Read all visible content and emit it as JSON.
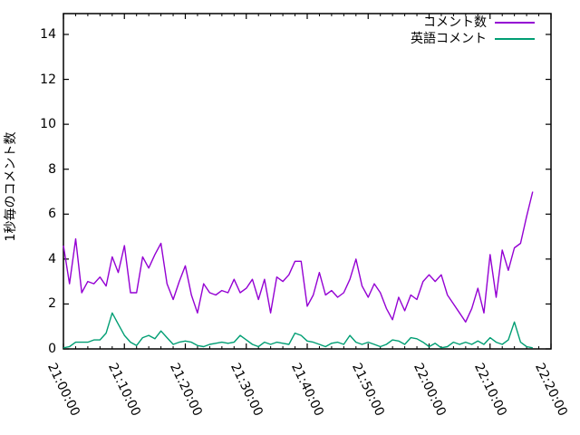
{
  "chart_data": {
    "type": "line",
    "title": "",
    "xlabel": "",
    "ylabel": "1秒毎のコメント数",
    "x_tick_labels": [
      "21:00:00",
      "21:10:00",
      "21:20:00",
      "21:30:00",
      "21:40:00",
      "21:50:00",
      "22:00:00",
      "22:10:00",
      "22:20:00"
    ],
    "x_tick_interval_minutes": 10,
    "x_minor_tick_interval_minutes": 2,
    "xlim_minutes": [
      0,
      80
    ],
    "x_unit": "minutes since 21:00:00, one sample per minute",
    "y_ticks": [
      0,
      2,
      4,
      6,
      8,
      10,
      12,
      14
    ],
    "ylim": [
      0,
      14.9
    ],
    "grid": false,
    "legend_position": "top-right-inside",
    "series": [
      {
        "name": "コメント数",
        "color": "#9400d3",
        "values": [
          4.6,
          2.9,
          4.9,
          2.5,
          3.0,
          2.9,
          3.2,
          2.8,
          4.1,
          3.4,
          4.6,
          2.5,
          2.5,
          4.1,
          3.6,
          4.2,
          4.7,
          2.9,
          2.2,
          3.0,
          3.7,
          2.4,
          1.6,
          2.9,
          2.5,
          2.4,
          2.6,
          2.5,
          3.1,
          2.5,
          2.7,
          3.1,
          2.2,
          3.1,
          1.6,
          3.2,
          3.0,
          3.3,
          3.9,
          3.9,
          1.9,
          2.4,
          3.4,
          2.4,
          2.6,
          2.3,
          2.5,
          3.1,
          4.0,
          2.8,
          2.3,
          2.9,
          2.5,
          1.8,
          1.3,
          2.3,
          1.7,
          2.4,
          2.2,
          3.0,
          3.3,
          3.0,
          3.3,
          2.4,
          2.0,
          1.6,
          1.2,
          1.8,
          2.7,
          1.6,
          4.2,
          2.3,
          4.4,
          3.5,
          4.5,
          4.7,
          5.9,
          7.0
        ]
      },
      {
        "name": "英語コメント",
        "color": "#009e73",
        "values": [
          0.05,
          0.1,
          0.3,
          0.3,
          0.3,
          0.4,
          0.4,
          0.7,
          1.6,
          1.1,
          0.6,
          0.3,
          0.15,
          0.5,
          0.6,
          0.45,
          0.8,
          0.5,
          0.2,
          0.3,
          0.35,
          0.3,
          0.15,
          0.1,
          0.2,
          0.25,
          0.3,
          0.25,
          0.3,
          0.6,
          0.4,
          0.2,
          0.1,
          0.3,
          0.2,
          0.3,
          0.25,
          0.2,
          0.7,
          0.6,
          0.35,
          0.3,
          0.2,
          0.1,
          0.25,
          0.3,
          0.2,
          0.6,
          0.3,
          0.2,
          0.3,
          0.2,
          0.1,
          0.2,
          0.4,
          0.35,
          0.2,
          0.5,
          0.45,
          0.3,
          0.1,
          0.25,
          0.05,
          0.1,
          0.3,
          0.2,
          0.3,
          0.2,
          0.35,
          0.2,
          0.5,
          0.3,
          0.2,
          0.4,
          1.2,
          0.3,
          0.1,
          0.05
        ]
      }
    ]
  }
}
